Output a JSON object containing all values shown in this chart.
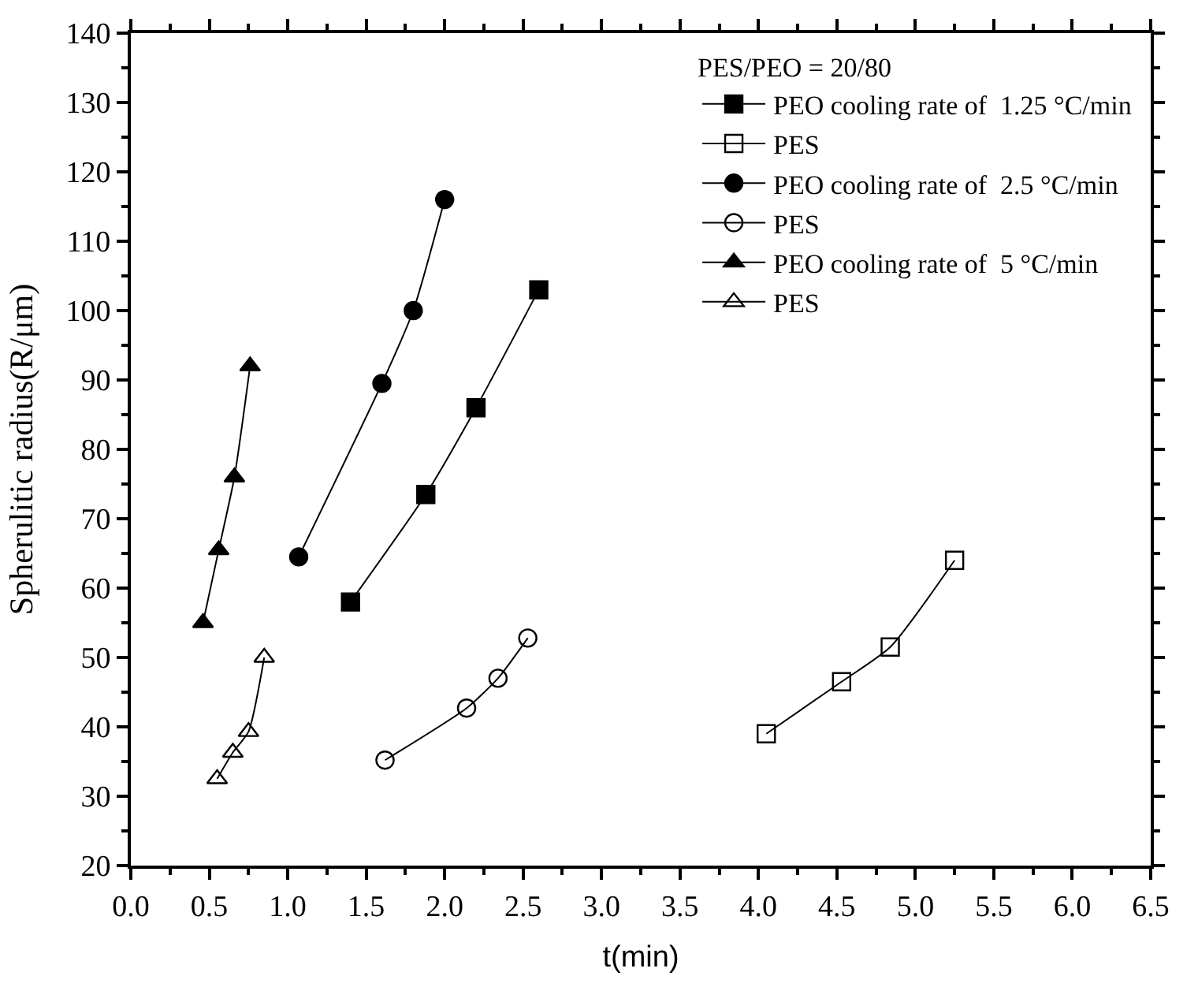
{
  "chart_data": {
    "type": "line",
    "xlabel": "t(min)",
    "ylabel": "Spherulitic radius(R/μm)",
    "legend_title": "PES/PEO = 20/80",
    "legend": "top right",
    "line_style": "solid",
    "xlim": [
      0,
      6.5
    ],
    "xticks": [
      {
        "value": 0,
        "label": "0.0"
      },
      0.5,
      {
        "value": 1,
        "label": "1.0"
      },
      1.5,
      {
        "value": 2,
        "label": "2.0"
      },
      2.5,
      {
        "value": 3,
        "label": "3.0"
      },
      3.5,
      {
        "value": 4,
        "label": "4.0"
      },
      4.5,
      {
        "value": 5,
        "label": "5.0"
      },
      5.5,
      {
        "value": 6,
        "label": "6.0"
      },
      6.5
    ],
    "ylim": [
      20,
      140
    ],
    "yticks": [
      20,
      30,
      40,
      50,
      60,
      70,
      80,
      90,
      100,
      110,
      120,
      130,
      140
    ],
    "series": [
      {
        "name": "PEO cooling rate of  1.25 °C/min",
        "color": "#000000",
        "marker": "square",
        "x": [
          1.4,
          1.88,
          2.2,
          2.6
        ],
        "values": [
          58,
          73.5,
          86,
          103
        ]
      },
      {
        "name": "PES",
        "color": "#000000",
        "marker": "square",
        "x": [
          4.05,
          4.53,
          4.84,
          5.25
        ],
        "values": [
          39,
          46.5,
          51.5,
          64
        ]
      },
      {
        "name": "PEO cooling rate of  2.5 °C/min",
        "color": "#000000",
        "marker": "circle",
        "x": [
          1.07,
          1.6,
          1.8,
          2.0
        ],
        "values": [
          64.5,
          89.5,
          100,
          116
        ]
      },
      {
        "name": "PES",
        "color": "#000000",
        "marker": "circle",
        "x": [
          1.62,
          2.14,
          2.34,
          2.53
        ],
        "values": [
          35.2,
          42.7,
          47,
          52.8
        ]
      },
      {
        "name": "PEO cooling rate of  5 °C/min",
        "color": "#000000",
        "marker": "triangle",
        "x": [
          0.46,
          0.56,
          0.66,
          0.76
        ],
        "values": [
          55,
          65.5,
          76,
          92
        ]
      },
      {
        "name": "PES",
        "color": "#000000",
        "marker": "triangle",
        "x": [
          0.55,
          0.65,
          0.75,
          0.85
        ],
        "values": [
          32.5,
          36.3,
          39.3,
          50
        ]
      }
    ]
  }
}
